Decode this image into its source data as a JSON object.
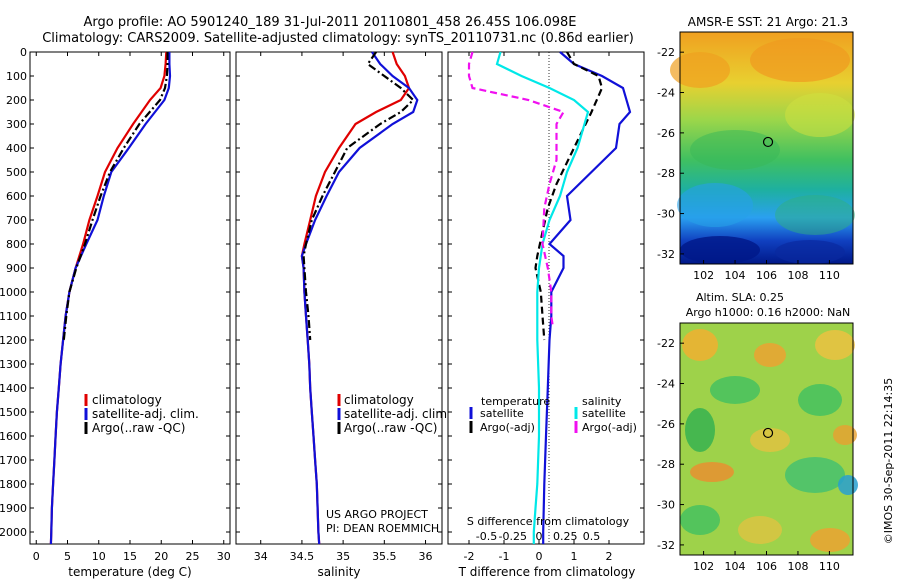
{
  "header": {
    "line1": "Argo profile: AO 5901240_189 31-Jul-2011 20110801_458 26.45S 106.098E",
    "line2": "Climatology: CARS2009. Satellite-adjusted climatology: synTS_20110731.nc (0.86d earlier)"
  },
  "colors": {
    "climatology": "#e00000",
    "satellite": "#1010d8",
    "argo": "#000000",
    "satellite_s": "#00e8e8",
    "argo_s": "#f010f0"
  },
  "chart_data": [
    {
      "type": "line",
      "id": "temperature",
      "xlabel": "temperature (deg C)",
      "xlim": [
        -1,
        31
      ],
      "xticks": [
        0,
        5,
        10,
        15,
        20,
        25,
        30
      ],
      "ylim": [
        0,
        2050
      ],
      "yticks": [
        0,
        100,
        200,
        300,
        400,
        500,
        600,
        700,
        800,
        900,
        1000,
        1100,
        1200,
        1300,
        1400,
        1500,
        1600,
        1700,
        1800,
        1900,
        2000
      ],
      "legend": [
        "climatology",
        "satellite-adj. clim.",
        "Argo(..raw -QC)"
      ],
      "series": [
        {
          "name": "climatology",
          "style": "solid",
          "color": "#e00000",
          "points": [
            [
              20.8,
              0
            ],
            [
              20.7,
              50
            ],
            [
              20.5,
              100
            ],
            [
              19.9,
              150
            ],
            [
              18.2,
              200
            ],
            [
              15.5,
              300
            ],
            [
              13.0,
              400
            ],
            [
              11.0,
              500
            ],
            [
              9.8,
              600
            ],
            [
              8.5,
              700
            ],
            [
              7.5,
              800
            ],
            [
              6.3,
              900
            ],
            [
              5.3,
              1000
            ],
            [
              4.7,
              1100
            ],
            [
              4.3,
              1200
            ],
            [
              3.9,
              1300
            ],
            [
              3.6,
              1400
            ],
            [
              3.3,
              1500
            ],
            [
              3.1,
              1600
            ],
            [
              2.9,
              1700
            ],
            [
              2.7,
              1800
            ],
            [
              2.5,
              1900
            ],
            [
              2.4,
              2000
            ],
            [
              2.35,
              2050
            ]
          ]
        },
        {
          "name": "satellite-adj. clim.",
          "style": "solid",
          "color": "#1010d8",
          "points": [
            [
              21.3,
              0
            ],
            [
              21.3,
              50
            ],
            [
              21.4,
              100
            ],
            [
              21.2,
              150
            ],
            [
              20.5,
              200
            ],
            [
              17.5,
              300
            ],
            [
              14.8,
              400
            ],
            [
              12.0,
              500
            ],
            [
              10.8,
              600
            ],
            [
              9.8,
              700
            ],
            [
              8.0,
              800
            ],
            [
              6.3,
              900
            ],
            [
              5.3,
              1000
            ],
            [
              4.7,
              1100
            ],
            [
              4.3,
              1200
            ],
            [
              3.9,
              1300
            ],
            [
              3.6,
              1400
            ],
            [
              3.3,
              1500
            ],
            [
              3.1,
              1600
            ],
            [
              2.9,
              1700
            ],
            [
              2.7,
              1800
            ],
            [
              2.5,
              1900
            ],
            [
              2.4,
              2000
            ],
            [
              2.35,
              2050
            ]
          ]
        },
        {
          "name": "Argo(..raw -QC)",
          "style": "dashdot",
          "color": "#000000",
          "points": [
            [
              21.0,
              0
            ],
            [
              21.0,
              50
            ],
            [
              20.9,
              100
            ],
            [
              20.6,
              150
            ],
            [
              19.8,
              200
            ],
            [
              16.5,
              300
            ],
            [
              14.0,
              400
            ],
            [
              11.8,
              500
            ],
            [
              10.3,
              600
            ],
            [
              9.0,
              700
            ],
            [
              7.8,
              800
            ],
            [
              6.4,
              900
            ],
            [
              5.3,
              1000
            ],
            [
              4.8,
              1100
            ],
            [
              4.4,
              1200
            ]
          ]
        }
      ]
    },
    {
      "type": "line",
      "id": "salinity",
      "xlabel": "salinity",
      "xlim": [
        33.7,
        36.2
      ],
      "xticks": [
        34,
        34.5,
        35,
        35.5,
        36
      ],
      "xticklabels": [
        "34",
        "34.5",
        "35",
        "35.5",
        "36"
      ],
      "ylim": [
        0,
        2050
      ],
      "legend": [
        "climatology",
        "satellite-adj. clim.",
        "Argo(..raw -QC)"
      ],
      "annotation": [
        "US ARGO PROJECT",
        "PI: DEAN ROEMMICH"
      ],
      "series": [
        {
          "name": "climatology",
          "style": "solid",
          "color": "#e00000",
          "points": [
            [
              35.6,
              0
            ],
            [
              35.65,
              50
            ],
            [
              35.75,
              100
            ],
            [
              35.8,
              150
            ],
            [
              35.7,
              200
            ],
            [
              35.4,
              250
            ],
            [
              35.15,
              300
            ],
            [
              34.95,
              400
            ],
            [
              34.78,
              500
            ],
            [
              34.67,
              600
            ],
            [
              34.6,
              700
            ],
            [
              34.53,
              800
            ],
            [
              34.5,
              850
            ],
            [
              34.52,
              900
            ],
            [
              34.53,
              1000
            ],
            [
              34.55,
              1100
            ],
            [
              34.57,
              1200
            ],
            [
              34.59,
              1300
            ],
            [
              34.6,
              1400
            ],
            [
              34.62,
              1500
            ],
            [
              34.64,
              1600
            ],
            [
              34.66,
              1700
            ],
            [
              34.68,
              1800
            ],
            [
              34.69,
              1900
            ],
            [
              34.7,
              2000
            ],
            [
              34.71,
              2050
            ]
          ]
        },
        {
          "name": "satellite-adj. clim.",
          "style": "solid",
          "color": "#1010d8",
          "points": [
            [
              35.35,
              0
            ],
            [
              35.45,
              50
            ],
            [
              35.6,
              100
            ],
            [
              35.8,
              150
            ],
            [
              35.9,
              200
            ],
            [
              35.85,
              250
            ],
            [
              35.6,
              300
            ],
            [
              35.2,
              400
            ],
            [
              34.95,
              500
            ],
            [
              34.8,
              600
            ],
            [
              34.66,
              700
            ],
            [
              34.55,
              800
            ],
            [
              34.5,
              850
            ],
            [
              34.52,
              900
            ],
            [
              34.53,
              1000
            ],
            [
              34.55,
              1100
            ],
            [
              34.57,
              1200
            ],
            [
              34.59,
              1300
            ],
            [
              34.6,
              1400
            ],
            [
              34.62,
              1500
            ],
            [
              34.64,
              1600
            ],
            [
              34.66,
              1700
            ],
            [
              34.68,
              1800
            ],
            [
              34.69,
              1900
            ],
            [
              34.7,
              2000
            ],
            [
              34.71,
              2050
            ]
          ]
        },
        {
          "name": "Argo(..raw -QC)",
          "style": "dashdot",
          "color": "#000000",
          "points": [
            [
              35.4,
              0
            ],
            [
              35.3,
              50
            ],
            [
              35.5,
              100
            ],
            [
              35.7,
              150
            ],
            [
              35.85,
              200
            ],
            [
              35.7,
              250
            ],
            [
              35.45,
              300
            ],
            [
              35.05,
              400
            ],
            [
              34.9,
              500
            ],
            [
              34.75,
              600
            ],
            [
              34.62,
              700
            ],
            [
              34.55,
              800
            ],
            [
              34.52,
              850
            ],
            [
              34.53,
              900
            ],
            [
              34.55,
              1000
            ],
            [
              34.58,
              1100
            ],
            [
              34.6,
              1200
            ]
          ]
        }
      ]
    },
    {
      "type": "line",
      "id": "difference",
      "xlabel": "T difference from climatology",
      "xlabel_top": "S difference from climatology",
      "xlim": [
        -2.6,
        3.0
      ],
      "xticks": [
        -2,
        -1,
        0,
        1,
        2
      ],
      "xticklabels": [
        "-2",
        "-1",
        "0",
        "1",
        "2"
      ],
      "sticks": [
        "-0.5",
        "-0.25",
        "0",
        "0.25",
        "0.5"
      ],
      "legend_titles": [
        "temperature",
        "salinity"
      ],
      "legend": [
        "satellite",
        "Argo(-adj)",
        "satellite",
        "Argo(-adj)"
      ],
      "ylim": [
        0,
        2050
      ],
      "series": [
        {
          "name": "temperature satellite",
          "style": "solid",
          "color": "#1010d8",
          "points": [
            [
              0.6,
              0
            ],
            [
              1.0,
              50
            ],
            [
              1.8,
              100
            ],
            [
              2.4,
              150
            ],
            [
              2.5,
              200
            ],
            [
              2.6,
              250
            ],
            [
              2.3,
              300
            ],
            [
              2.2,
              400
            ],
            [
              1.5,
              500
            ],
            [
              0.8,
              600
            ],
            [
              0.9,
              700
            ],
            [
              0.3,
              800
            ],
            [
              0.7,
              850
            ],
            [
              0.7,
              900
            ],
            [
              0.35,
              1000
            ],
            [
              0.35,
              1100
            ],
            [
              0.3,
              1200
            ],
            [
              0.25,
              1400
            ],
            [
              0.2,
              1600
            ],
            [
              0.15,
              1800
            ],
            [
              0.12,
              2000
            ],
            [
              0.12,
              2050
            ]
          ]
        },
        {
          "name": "temperature Argo(-adj)",
          "style": "dash",
          "color": "#000000",
          "points": [
            [
              0.8,
              0
            ],
            [
              1.0,
              50
            ],
            [
              1.7,
              100
            ],
            [
              1.8,
              150
            ],
            [
              1.5,
              250
            ],
            [
              1.0,
              400
            ],
            [
              0.5,
              550
            ],
            [
              0.25,
              650
            ],
            [
              0.1,
              750
            ],
            [
              -0.05,
              850
            ],
            [
              -0.1,
              900
            ],
            [
              0.05,
              1000
            ],
            [
              0.1,
              1100
            ],
            [
              0.15,
              1200
            ]
          ]
        },
        {
          "name": "salinity satellite",
          "style": "solid",
          "color": "#00e8e8",
          "points": [
            [
              -1.1,
              0
            ],
            [
              -1.2,
              50
            ],
            [
              -0.5,
              100
            ],
            [
              0.3,
              150
            ],
            [
              1.0,
              200
            ],
            [
              1.4,
              250
            ],
            [
              1.3,
              300
            ],
            [
              1.1,
              400
            ],
            [
              0.8,
              500
            ],
            [
              0.6,
              600
            ],
            [
              0.3,
              700
            ],
            [
              0.1,
              800
            ],
            [
              0.0,
              900
            ],
            [
              -0.05,
              1000
            ],
            [
              -0.05,
              1200
            ],
            [
              0.0,
              1400
            ],
            [
              0.0,
              1600
            ],
            [
              -0.05,
              1800
            ],
            [
              -0.1,
              1900
            ],
            [
              -0.15,
              2000
            ],
            [
              -0.15,
              2050
            ]
          ]
        },
        {
          "name": "salinity Argo(-adj)",
          "style": "dash",
          "color": "#f010f0",
          "points": [
            [
              -1.9,
              0
            ],
            [
              -2.0,
              50
            ],
            [
              -2.0,
              100
            ],
            [
              -1.9,
              150
            ],
            [
              -0.3,
              200
            ],
            [
              0.7,
              250
            ],
            [
              0.5,
              300
            ],
            [
              0.5,
              450
            ],
            [
              0.3,
              550
            ],
            [
              0.15,
              650
            ],
            [
              0.1,
              800
            ],
            [
              0.25,
              900
            ],
            [
              0.35,
              1000
            ],
            [
              0.35,
              1100
            ],
            [
              0.4,
              1150
            ]
          ]
        }
      ]
    },
    {
      "type": "heatmap",
      "id": "sst_map",
      "title": "AMSR-E SST: 21 Argo: 21.3",
      "xlim": [
        100.5,
        111.5
      ],
      "ylim": [
        -32.5,
        -21
      ],
      "xticks": [
        102,
        104,
        106,
        108,
        110
      ],
      "yticks": [
        -22,
        -24,
        -26,
        -28,
        -30,
        -32
      ],
      "marker": [
        106.098,
        -26.45
      ]
    },
    {
      "type": "heatmap",
      "id": "sla_map",
      "title_lines": [
        "Altim. SLA: 0.25",
        "Argo h1000: 0.16 h2000: NaN"
      ],
      "xlim": [
        100.5,
        111.5
      ],
      "ylim": [
        -32.5,
        -21
      ],
      "xticks": [
        102,
        104,
        106,
        108,
        110
      ],
      "yticks": [
        -22,
        -24,
        -26,
        -28,
        -30,
        -32
      ],
      "marker": [
        106.098,
        -26.45
      ]
    }
  ],
  "side_label": "©IMOS 30-Sep-2011 22:14:35"
}
